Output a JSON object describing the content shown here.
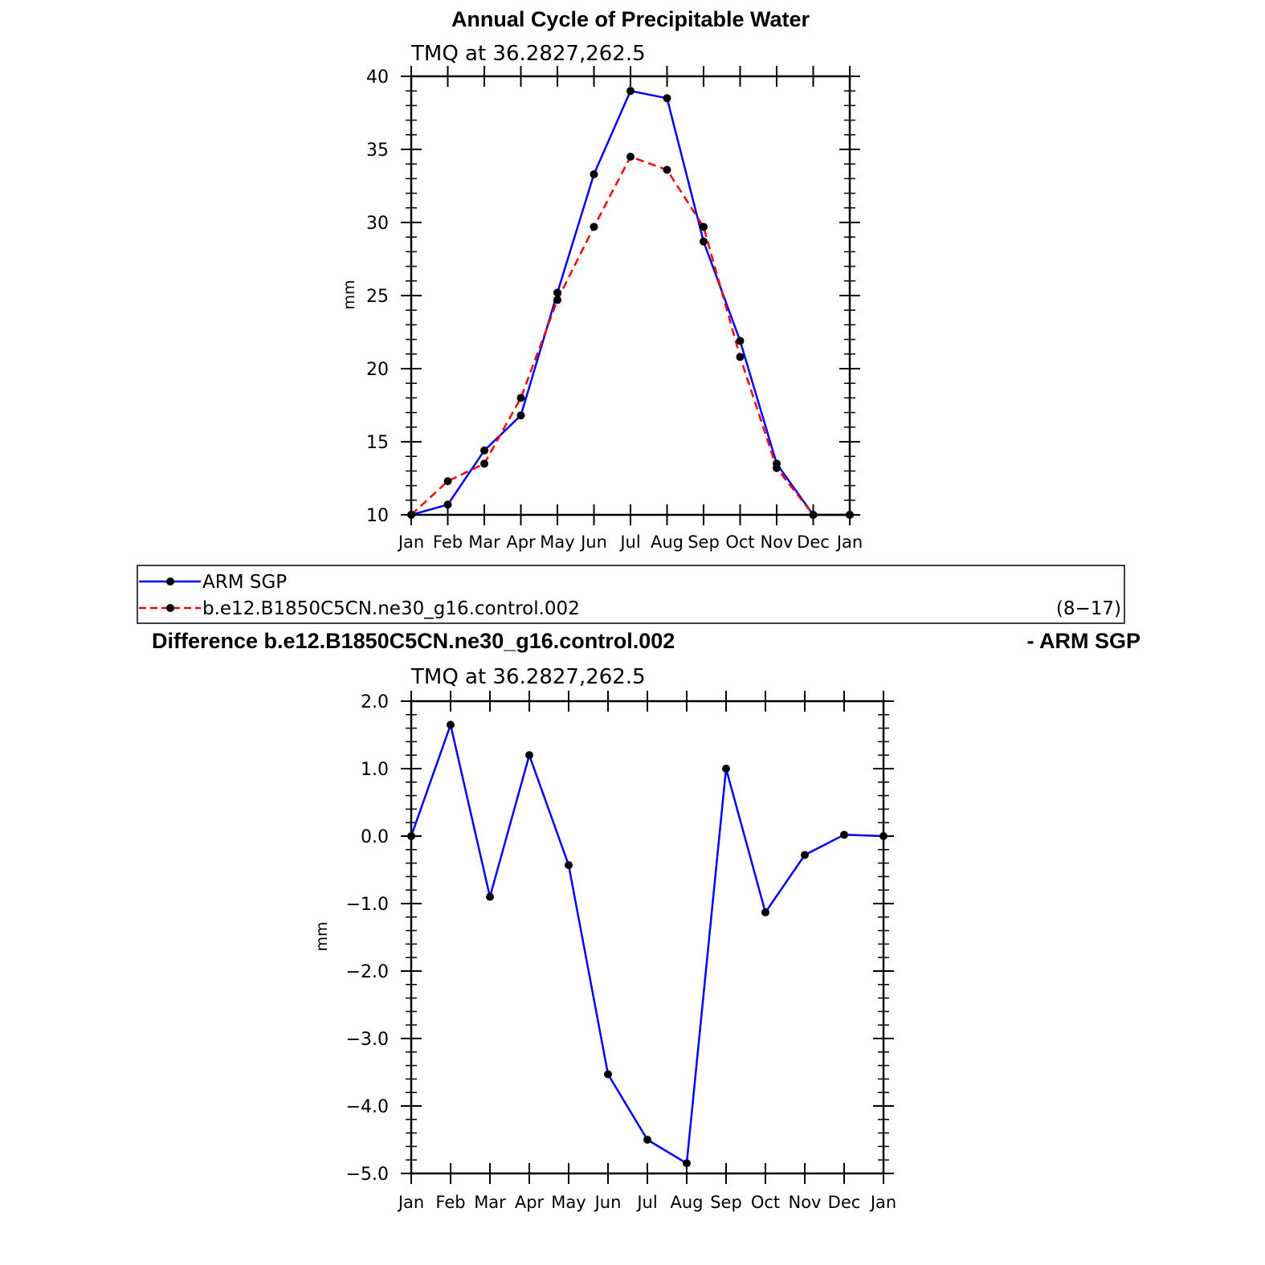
{
  "chart_data": [
    {
      "type": "line",
      "title": "Annual Cycle of Precipitable Water",
      "subtitle": "TMQ at 36.2827,262.5",
      "xlabel": "",
      "ylabel": "mm",
      "categories": [
        "Jan",
        "Feb",
        "Mar",
        "Apr",
        "May",
        "Jun",
        "Jul",
        "Aug",
        "Sep",
        "Oct",
        "Nov",
        "Dec",
        "Jan"
      ],
      "ylim": [
        10,
        40
      ],
      "yticks": [
        10,
        15,
        20,
        25,
        30,
        35,
        40
      ],
      "series": [
        {
          "name": "ARM SGP",
          "color": "#0000ff",
          "style": "solid",
          "values": [
            10.0,
            10.7,
            14.4,
            16.8,
            25.2,
            33.3,
            39.0,
            38.5,
            28.7,
            21.9,
            13.5,
            10.0,
            10.0
          ]
        },
        {
          "name": "b.e12.B1850C5CN.ne30_g16.control.002",
          "color": "#ff0000",
          "style": "dashed",
          "values": [
            10.0,
            12.3,
            13.5,
            18.0,
            24.7,
            29.7,
            34.5,
            33.6,
            29.7,
            20.8,
            13.2,
            10.0,
            10.0
          ]
        }
      ],
      "legend": {
        "position": "bottom",
        "note": "(8−17)"
      }
    },
    {
      "type": "line",
      "title": "Difference b.e12.B1850C5CN.ne30_g16.control.002",
      "title_right": "- ARM SGP",
      "subtitle": "TMQ at 36.2827,262.5",
      "xlabel": "",
      "ylabel": "mm",
      "categories": [
        "Jan",
        "Feb",
        "Mar",
        "Apr",
        "May",
        "Jun",
        "Jul",
        "Aug",
        "Sep",
        "Oct",
        "Nov",
        "Dec",
        "Jan"
      ],
      "ylim": [
        -5.0,
        2.0
      ],
      "yticks": [
        "−5.0",
        "−4.0",
        "−3.0",
        "−2.0",
        "−1.0",
        "0.0",
        "1.0",
        "2.0"
      ],
      "series": [
        {
          "name": "",
          "color": "#0000ff",
          "style": "solid",
          "values": [
            0.0,
            1.65,
            -0.9,
            1.2,
            -0.43,
            -3.53,
            -4.5,
            -4.85,
            1.0,
            -1.13,
            -0.28,
            0.02,
            0.0
          ]
        }
      ]
    }
  ]
}
